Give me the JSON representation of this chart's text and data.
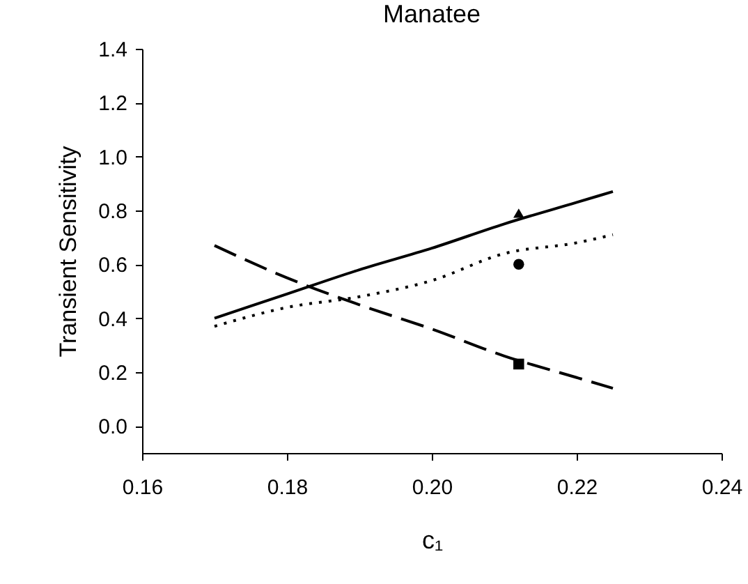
{
  "chart_data": {
    "type": "line",
    "title": "Manatee",
    "xlabel": "c₁",
    "ylabel": "Transient Sensitivity",
    "xlim": [
      0.16,
      0.24
    ],
    "xticks": [
      0.16,
      0.18,
      {
        "value": 0.2,
        "label": "0.20"
      },
      0.22,
      0.24
    ],
    "ylim": [
      -0.1,
      1.4
    ],
    "yticks": [
      {
        "value": 0,
        "label": "0.0"
      },
      0.2,
      0.4,
      0.6,
      0.8,
      {
        "value": 1,
        "label": "1.0"
      },
      1.2,
      1.4
    ],
    "grid": false,
    "series": [
      {
        "color": "#000000",
        "line_style": "solid",
        "marker": "none",
        "x": [
          0.17,
          0.18,
          0.19,
          0.2,
          0.21,
          0.22,
          0.225
        ],
        "values": [
          0.4,
          0.49,
          0.58,
          0.66,
          0.75,
          0.83,
          0.87
        ]
      },
      {
        "color": "#000000",
        "line_style": "dotted",
        "marker": "none",
        "x": [
          0.17,
          0.18,
          0.19,
          0.2,
          0.21,
          0.22,
          0.225
        ],
        "values": [
          0.37,
          0.44,
          0.48,
          0.54,
          0.64,
          0.68,
          0.71
        ]
      },
      {
        "color": "#000000",
        "line_style": "dashed",
        "marker": "none",
        "x": [
          0.17,
          0.18,
          0.19,
          0.2,
          0.21,
          0.22,
          0.225
        ],
        "values": [
          0.67,
          0.55,
          0.45,
          0.36,
          0.26,
          0.18,
          0.14
        ]
      },
      {
        "type": "scatter",
        "color": "#000000",
        "marker": "triangle",
        "x": [
          0.212
        ],
        "values": [
          0.79
        ]
      },
      {
        "type": "scatter",
        "color": "#000000",
        "marker": "circle",
        "x": [
          0.212
        ],
        "values": [
          0.6
        ]
      },
      {
        "type": "scatter",
        "color": "#000000",
        "marker": "square",
        "x": [
          0.212
        ],
        "values": [
          0.23
        ]
      }
    ]
  }
}
